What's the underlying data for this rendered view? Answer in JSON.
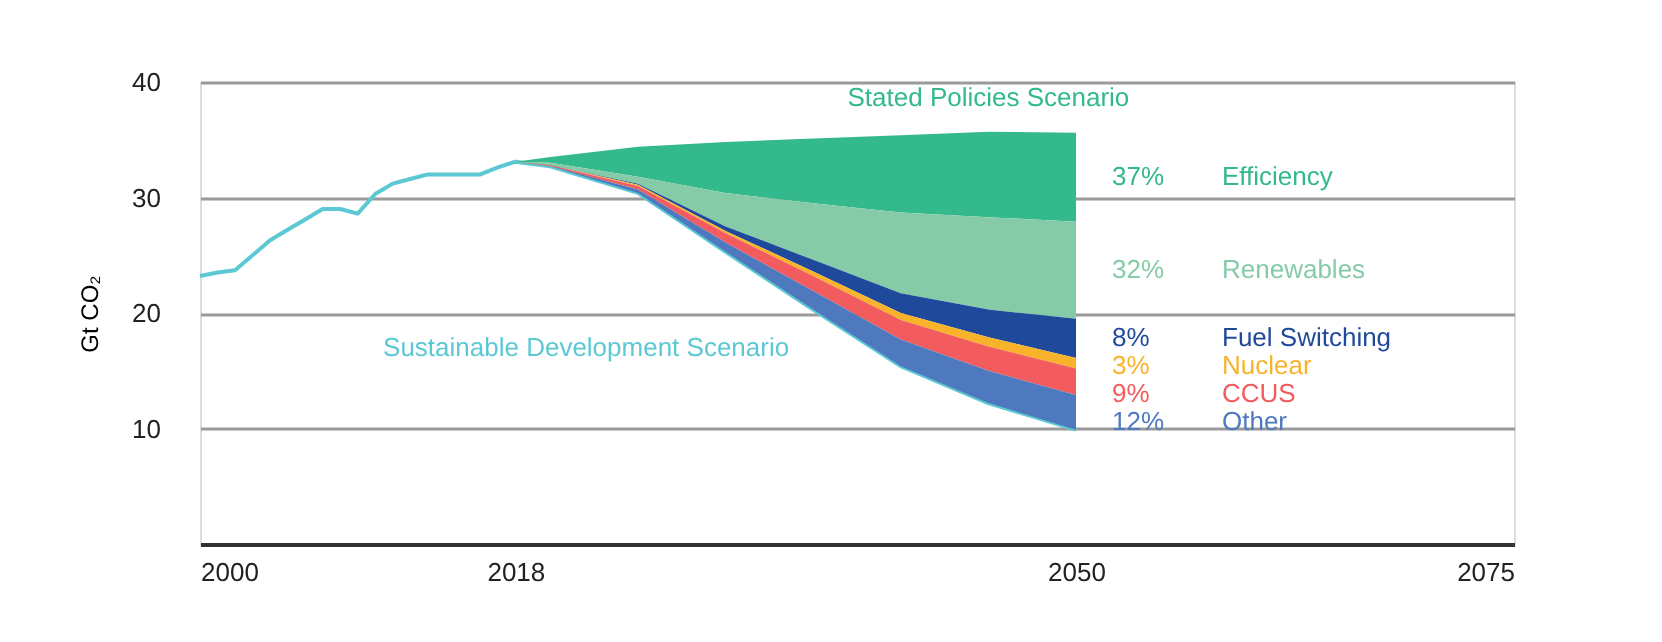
{
  "chart_data": {
    "type": "area",
    "ylabel": "Gt CO₂",
    "xlim": [
      2000,
      2075
    ],
    "xticks": [
      2000,
      2018,
      2050,
      2075
    ],
    "ylim": [
      0,
      40
    ],
    "yticks": [
      10,
      20,
      30,
      40
    ],
    "grid": "y",
    "series": [
      {
        "type": "line",
        "color": "#5bc8d3",
        "x": [
          2000,
          2001,
          2002,
          2003,
          2004,
          2005,
          2006,
          2007,
          2008,
          2009,
          2010,
          2011,
          2012,
          2013,
          2014,
          2015,
          2016,
          2017,
          2018,
          2020,
          2025,
          2030,
          2035,
          2040,
          2045,
          2050
        ],
        "values": [
          23.2,
          23.5,
          23.7,
          25.0,
          26.3,
          27.2,
          28.1,
          29.0,
          29.0,
          28.6,
          30.3,
          31.2,
          31.6,
          32.0,
          32.0,
          32.0,
          32.0,
          32.6,
          33.1,
          32.7,
          30.4,
          25.3,
          20.3,
          15.4,
          12.2,
          9.9
        ]
      },
      {
        "name": "Efficiency",
        "color": "#33b98b",
        "x": [
          2018,
          2020,
          2025,
          2030,
          2035,
          2040,
          2045,
          2050
        ],
        "values": [
          33.1,
          33.5,
          34.4,
          34.8,
          35.1,
          35.4,
          35.7,
          35.6
        ]
      },
      {
        "name": "Renewables",
        "color": "#86cba8",
        "x": [
          2018,
          2020,
          2025,
          2030,
          2035,
          2040,
          2045,
          2050
        ],
        "values": [
          33.1,
          33.0,
          31.8,
          30.4,
          29.5,
          28.7,
          28.3,
          27.9
        ]
      },
      {
        "name": "Fuel Switching",
        "color": "#1f4a9c",
        "x": [
          2018,
          2020,
          2025,
          2030,
          2035,
          2040,
          2045,
          2050
        ],
        "values": [
          33.1,
          32.8,
          31.2,
          27.5,
          24.6,
          21.7,
          20.3,
          19.5
        ]
      },
      {
        "name": "Nuclear",
        "color": "#f9b32b",
        "x": [
          2018,
          2020,
          2025,
          2030,
          2035,
          2040,
          2045,
          2050
        ],
        "values": [
          33.1,
          32.8,
          31.1,
          27.1,
          23.6,
          20.0,
          17.9,
          16.1
        ]
      },
      {
        "name": "CCUS",
        "color": "#f25c5f",
        "x": [
          2018,
          2020,
          2025,
          2030,
          2035,
          2040,
          2045,
          2050
        ],
        "values": [
          33.1,
          32.8,
          31.0,
          26.9,
          23.2,
          19.4,
          17.1,
          15.2
        ]
      },
      {
        "name": "Other",
        "color": "#4f79bf",
        "x": [
          2018,
          2020,
          2025,
          2030,
          2035,
          2040,
          2045,
          2050
        ],
        "values": [
          33.1,
          32.7,
          30.7,
          26.1,
          21.9,
          17.7,
          15.0,
          12.9
        ]
      }
    ],
    "annotations": [
      "37%",
      "32%",
      "8%",
      "3%",
      "9%",
      "12%",
      "Stated Policies Scenario",
      "Sustainable Development Scenario"
    ]
  }
}
